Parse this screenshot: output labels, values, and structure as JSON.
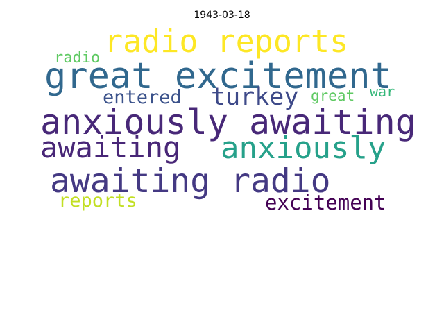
{
  "title": "1943-03-18",
  "words": [
    {
      "text": "radio reports",
      "color": "#fde725"
    },
    {
      "text": "great excitement",
      "color": "#31688e"
    },
    {
      "text": "radio",
      "color": "#5ec962"
    },
    {
      "text": "entered",
      "color": "#3b528b"
    },
    {
      "text": "turkey",
      "color": "#3e4a89"
    },
    {
      "text": "great",
      "color": "#5ec962"
    },
    {
      "text": "war",
      "color": "#35b779"
    },
    {
      "text": "anxiously awaiting",
      "color": "#482878"
    },
    {
      "text": "awaiting",
      "color": "#482677"
    },
    {
      "text": "anxiously",
      "color": "#26a18a"
    },
    {
      "text": "awaiting radio",
      "color": "#443983"
    },
    {
      "text": "reports",
      "color": "#c2df23"
    },
    {
      "text": "excitement",
      "color": "#440154"
    }
  ]
}
